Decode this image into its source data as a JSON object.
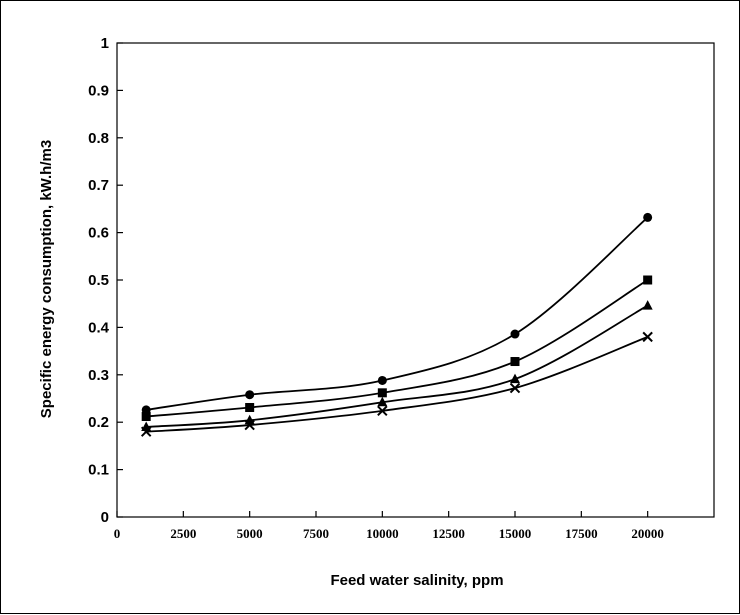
{
  "chart_data": {
    "type": "line",
    "title": "",
    "xlabel": "Feed water salinity, ppm",
    "ylabel": "Specific energy consumption, kW.h/m3",
    "xlim": [
      0,
      22500
    ],
    "ylim": [
      0,
      1
    ],
    "xticks": [
      "0",
      "2500",
      "5000",
      "7500",
      "10000",
      "12500",
      "15000",
      "17500",
      "20000"
    ],
    "yticks": [
      "0",
      "0.1",
      "0.2",
      "0.3",
      "0.4",
      "0.5",
      "0.6",
      "0.7",
      "0.8",
      "0.9",
      "1"
    ],
    "grid": false,
    "legend": "none",
    "line_color": "#000000",
    "series": [
      {
        "marker": "circle",
        "points": [
          [
            1100,
            0.226
          ],
          [
            5000,
            0.258
          ],
          [
            10000,
            0.288
          ],
          [
            15000,
            0.386
          ],
          [
            20000,
            0.632
          ]
        ]
      },
      {
        "marker": "square",
        "points": [
          [
            1100,
            0.212
          ],
          [
            5000,
            0.231
          ],
          [
            10000,
            0.262
          ],
          [
            15000,
            0.328
          ],
          [
            20000,
            0.5
          ]
        ]
      },
      {
        "marker": "triangle",
        "points": [
          [
            1100,
            0.19
          ],
          [
            5000,
            0.204
          ],
          [
            10000,
            0.242
          ],
          [
            15000,
            0.291
          ],
          [
            20000,
            0.446
          ]
        ]
      },
      {
        "marker": "cross",
        "points": [
          [
            1100,
            0.18
          ],
          [
            5000,
            0.194
          ],
          [
            10000,
            0.224
          ],
          [
            15000,
            0.272
          ],
          [
            20000,
            0.38
          ]
        ]
      }
    ]
  }
}
